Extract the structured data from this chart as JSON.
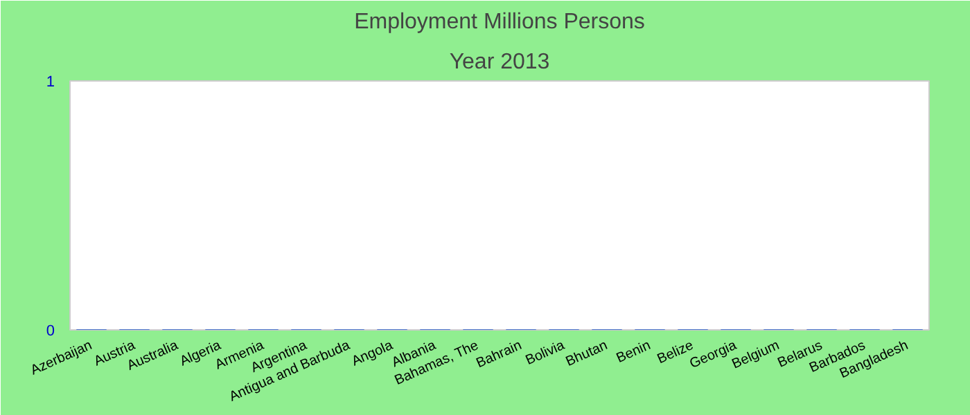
{
  "chart_data": {
    "type": "bar",
    "title": "Employment Millions Persons",
    "subtitle": "Year 2013",
    "categories": [
      "Azerbaijan",
      "Austria",
      "Australia",
      "Algeria",
      "Armenia",
      "Argentina",
      "Antigua and Barbuda",
      "Angola",
      "Albania",
      "Bahamas, The",
      "Bahrain",
      "Bolivia",
      "Bhutan",
      "Benin",
      "Belize",
      "Georgia",
      "Belgium",
      "Belarus",
      "Barbados",
      "Bangladesh"
    ],
    "values": [
      0,
      0,
      0,
      0,
      0,
      0,
      0,
      0,
      0,
      0,
      0,
      0,
      0,
      0,
      0,
      0,
      0,
      0,
      0,
      0
    ],
    "color": "#4472c4",
    "ylim": [
      0,
      1
    ],
    "yticks": [
      0,
      1
    ],
    "grid": false
  }
}
